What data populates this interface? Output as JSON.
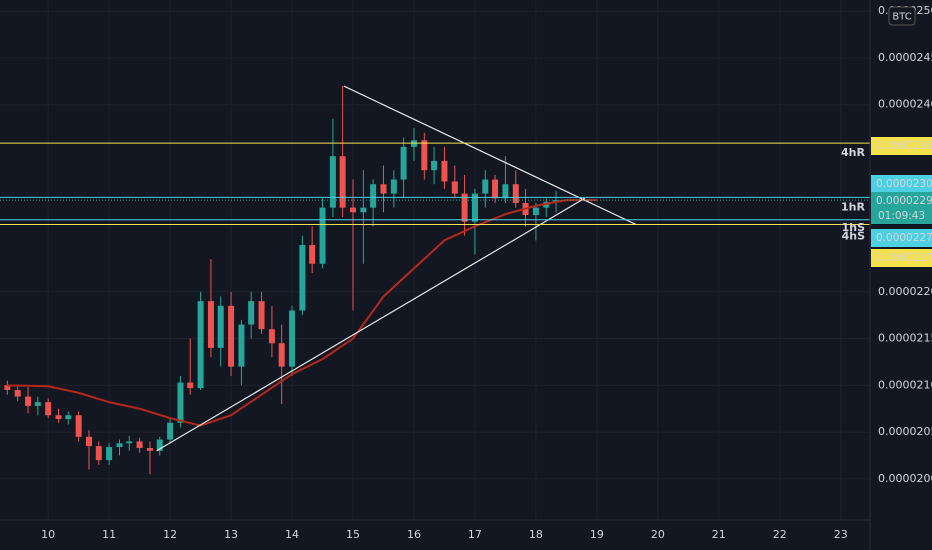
{
  "chart_data": {
    "type": "candlestick",
    "currency": "BTC",
    "x": [
      9.33,
      9.5,
      9.67,
      9.83,
      10,
      10.17,
      10.33,
      10.5,
      10.67,
      10.83,
      11,
      11.17,
      11.33,
      11.5,
      11.67,
      11.83,
      12,
      12.17,
      12.33,
      12.5,
      12.67,
      12.83,
      13,
      13.17,
      13.33,
      13.5,
      13.67,
      13.83,
      14,
      14.17,
      14.33,
      14.5,
      14.67,
      14.83,
      15,
      15.17,
      15.33,
      15.5,
      15.67,
      15.83,
      16,
      16.17,
      16.33,
      16.5,
      16.67,
      16.83,
      17,
      17.17,
      17.33,
      17.5,
      17.67,
      17.83,
      18,
      18.17,
      18.33
    ],
    "open": [
      2.1e-05,
      2.095e-05,
      2.088e-05,
      2.078e-05,
      2.082e-05,
      2.068e-05,
      2.064e-05,
      2.068e-05,
      2.045e-05,
      2.035e-05,
      2.02e-05,
      2.034e-05,
      2.038e-05,
      2.04e-05,
      2.033e-05,
      2.03e-05,
      2.042e-05,
      2.06e-05,
      2.103e-05,
      2.097e-05,
      2.19e-05,
      2.14e-05,
      2.185e-05,
      2.12e-05,
      2.165e-05,
      2.19e-05,
      2.16e-05,
      2.145e-05,
      2.12e-05,
      2.18e-05,
      2.25e-05,
      2.23e-05,
      2.29e-05,
      2.345e-05,
      2.29e-05,
      2.285e-05,
      2.29e-05,
      2.315e-05,
      2.305e-05,
      2.32e-05,
      2.355e-05,
      2.362e-05,
      2.33e-05,
      2.34e-05,
      2.318e-05,
      2.305e-05,
      2.275e-05,
      2.305e-05,
      2.32e-05,
      2.3e-05,
      2.315e-05,
      2.295e-05,
      2.282e-05,
      2.29e-05,
      2.296e-05
    ],
    "high": [
      2.105e-05,
      2.1e-05,
      2.098e-05,
      2.088e-05,
      2.086e-05,
      2.075e-05,
      2.072e-05,
      2.072e-05,
      2.052e-05,
      2.04e-05,
      2.038e-05,
      2.042e-05,
      2.046e-05,
      2.044e-05,
      2.04e-05,
      2.045e-05,
      2.065e-05,
      2.11e-05,
      2.15e-05,
      2.2e-05,
      2.235e-05,
      2.195e-05,
      2.2e-05,
      2.17e-05,
      2.2e-05,
      2.2e-05,
      2.185e-05,
      2.165e-05,
      2.185e-05,
      2.26e-05,
      2.27e-05,
      2.3e-05,
      2.385e-05,
      2.42e-05,
      2.32e-05,
      2.33e-05,
      2.32e-05,
      2.335e-05,
      2.33e-05,
      2.365e-05,
      2.375e-05,
      2.37e-05,
      2.355e-05,
      2.355e-05,
      2.335e-05,
      2.325e-05,
      2.31e-05,
      2.33e-05,
      2.325e-05,
      2.345e-05,
      2.33e-05,
      2.31e-05,
      2.295e-05,
      2.3e-05,
      2.308e-05
    ],
    "low": [
      2.09e-05,
      2.083e-05,
      2.07e-05,
      2.068e-05,
      2.065e-05,
      2.06e-05,
      2.058e-05,
      2.04e-05,
      2.01e-05,
      2.015e-05,
      2.015e-05,
      2.025e-05,
      2.03e-05,
      2.028e-05,
      2.005e-05,
      2.025e-05,
      2.038e-05,
      2.055e-05,
      2.09e-05,
      2.095e-05,
      2.13e-05,
      2.12e-05,
      2.11e-05,
      2.1e-05,
      2.15e-05,
      2.155e-05,
      2.13e-05,
      2.08e-05,
      2.11e-05,
      2.175e-05,
      2.22e-05,
      2.225e-05,
      2.28e-05,
      2.28e-05,
      2.18e-05,
      2.23e-05,
      2.27e-05,
      2.285e-05,
      2.29e-05,
      2.3e-05,
      2.34e-05,
      2.32e-05,
      2.315e-05,
      2.31e-05,
      2.3e-05,
      2.26e-05,
      2.24e-05,
      2.29e-05,
      2.295e-05,
      2.295e-05,
      2.29e-05,
      2.27e-05,
      2.255e-05,
      2.28e-05,
      2.285e-05
    ],
    "close": [
      2.095e-05,
      2.088e-05,
      2.078e-05,
      2.082e-05,
      2.068e-05,
      2.064e-05,
      2.068e-05,
      2.045e-05,
      2.035e-05,
      2.02e-05,
      2.034e-05,
      2.038e-05,
      2.04e-05,
      2.033e-05,
      2.03e-05,
      2.042e-05,
      2.06e-05,
      2.103e-05,
      2.097e-05,
      2.19e-05,
      2.14e-05,
      2.185e-05,
      2.12e-05,
      2.165e-05,
      2.19e-05,
      2.16e-05,
      2.145e-05,
      2.12e-05,
      2.18e-05,
      2.25e-05,
      2.23e-05,
      2.29e-05,
      2.345e-05,
      2.29e-05,
      2.285e-05,
      2.29e-05,
      2.315e-05,
      2.305e-05,
      2.32e-05,
      2.355e-05,
      2.362e-05,
      2.33e-05,
      2.34e-05,
      2.318e-05,
      2.305e-05,
      2.275e-05,
      2.305e-05,
      2.32e-05,
      2.3e-05,
      2.315e-05,
      2.295e-05,
      2.282e-05,
      2.29e-05,
      2.296e-05,
      2.298e-05
    ],
    "up_color": "#26a69a",
    "down_color": "#ef5350",
    "ma": {
      "color": "#b7281c",
      "x": [
        9.33,
        10,
        10.5,
        11,
        11.5,
        12,
        12.5,
        13,
        13.5,
        14,
        14.5,
        15,
        15.5,
        16,
        16.5,
        17,
        17.5,
        18,
        18.5,
        19
      ],
      "values": [
        2.1e-05,
        2.099e-05,
        2.092e-05,
        2.082e-05,
        2.075e-05,
        2.065e-05,
        2.057e-05,
        2.068e-05,
        2.09e-05,
        2.112e-05,
        2.128e-05,
        2.15e-05,
        2.195e-05,
        2.225e-05,
        2.255e-05,
        2.27e-05,
        2.283e-05,
        2.292e-05,
        2.298e-05,
        2.298e-05
      ]
    },
    "trendlines": [
      {
        "color": "#e8e8e8",
        "x": [
          14.85,
          19.64
        ],
        "y": [
          2.42e-05,
          2.272e-05
        ]
      },
      {
        "color": "#e8e8e8",
        "x": [
          11.78,
          18.8
        ],
        "y": [
          2.03e-05,
          2.3e-05
        ]
      }
    ],
    "levels": [
      {
        "label": "4hR",
        "value": 2.359e-05,
        "color": "#f5e14b"
      },
      {
        "label": "1hR",
        "value": 2.301e-05,
        "color": "#4dd0e1"
      },
      {
        "label": "1hS",
        "value": 2.277e-05,
        "color": "#4dd0e1"
      },
      {
        "label": "4hS",
        "value": 2.272e-05,
        "color": "#f5e14b"
      }
    ],
    "last_price": {
      "value": 2.298e-05,
      "countdown": "01:09:43",
      "color": "#26a69a"
    },
    "xlim": [
      9.21,
      23.48
    ],
    "xticks": [
      10,
      11,
      12,
      13,
      14,
      15,
      16,
      17,
      18,
      19,
      20,
      21,
      22,
      23
    ],
    "ylim": [
      1.956e-05,
      2.512e-05
    ],
    "yticks": [
      {
        "value": 2e-05,
        "label": "0.00002000"
      },
      {
        "value": 2.05e-05,
        "label": "0.00002050"
      },
      {
        "value": 2.1e-05,
        "label": "0.00002100"
      },
      {
        "value": 2.15e-05,
        "label": "0.00002150"
      },
      {
        "value": 2.2e-05,
        "label": "0.00002200"
      },
      {
        "value": 2.4e-05,
        "label": "0.00002400"
      },
      {
        "value": 2.45e-05,
        "label": "0.00002450"
      },
      {
        "value": 2.5e-05,
        "label": "0.00002500"
      }
    ],
    "grid": true
  }
}
